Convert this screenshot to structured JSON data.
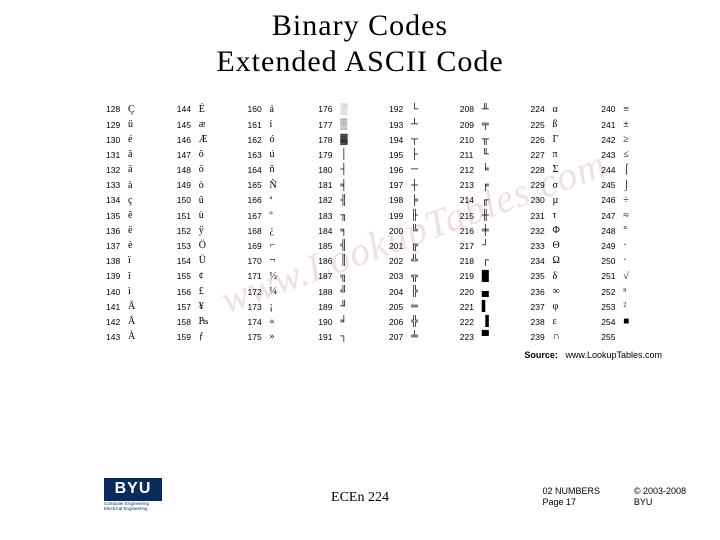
{
  "title_line1": "Binary Codes",
  "title_line2": "Extended ASCII Code",
  "watermark_text": "www.LookupTables.com",
  "source_label": "Source:",
  "source_url": "www.LookupTables.com",
  "course_code": "ECEn 224",
  "page_label_top": "02 NUMBERS",
  "page_label_bottom": "Page 17",
  "copyright_top": "© 2003-2008",
  "copyright_bottom": "BYU",
  "logo_text": "BYU",
  "logo_sub1": "Computer Engineering",
  "logo_sub2": "Electrical Engineering",
  "ascii": {
    "start": 128,
    "chars": [
      "Ç",
      "ü",
      "é",
      "â",
      "ä",
      "à",
      "ç",
      "ê",
      "ë",
      "è",
      "ï",
      "î",
      "ì",
      "Ä",
      "Å",
      "À",
      "É",
      "æ",
      "Æ",
      "ô",
      "ö",
      "ò",
      "û",
      "ù",
      "ÿ",
      "Ö",
      "Ü",
      "¢",
      "£",
      "¥",
      "₧",
      "ƒ",
      "á",
      "í",
      "ó",
      "ú",
      "ñ",
      "Ñ",
      "ª",
      "º",
      "¿",
      "⌐",
      "¬",
      "½",
      "¼",
      "¡",
      "«",
      "»",
      "░",
      "▒",
      "▓",
      "│",
      "┤",
      "╡",
      "╢",
      "╖",
      "╕",
      "╣",
      "║",
      "╗",
      "╝",
      "╜",
      "╛",
      "┐",
      "└",
      "┴",
      "┬",
      "├",
      "─",
      "┼",
      "╞",
      "╟",
      "╚",
      "╔",
      "╩",
      "╦",
      "╠",
      "═",
      "╬",
      "╧",
      "╨",
      "╤",
      "╥",
      "╙",
      "╘",
      "╒",
      "╓",
      "╫",
      "╪",
      "┘",
      "┌",
      "█",
      "▄",
      "▌",
      "▐",
      "▀",
      "α",
      "ß",
      "Γ",
      "π",
      "Σ",
      "σ",
      "µ",
      "τ",
      "Φ",
      "Θ",
      "Ω",
      "δ",
      "∞",
      "φ",
      "ε",
      "∩",
      "≡",
      "±",
      "≥",
      "≤",
      "⌠",
      "⌡",
      "÷",
      "≈",
      "°",
      "·",
      "·",
      "√",
      "ⁿ",
      "²",
      "■",
      " "
    ]
  },
  "style": {
    "bg_color": "#ffffff",
    "text_color": "#000000",
    "title_fontsize": 30,
    "table_fontsize": 8.5,
    "logo_bg": "#0a2a5c",
    "logo_fg": "#ffffff",
    "watermark_color": "rgba(160,80,120,0.18)"
  }
}
